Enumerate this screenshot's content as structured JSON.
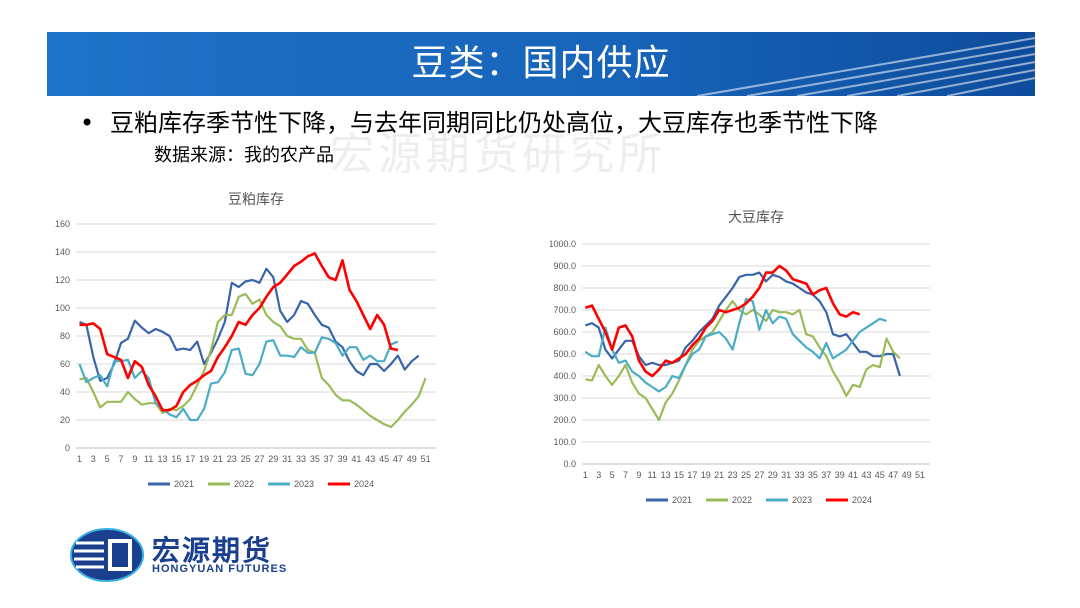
{
  "header": {
    "title": "豆类：国内供应"
  },
  "bullet": {
    "marker": "•",
    "text": "豆粕库存季节性下降，与去年同期同比仍处高位，大豆库存也季节性下降",
    "source": "数据来源：我的农产品"
  },
  "watermark": "宏源期货研究所",
  "logo": {
    "cn": "宏源期货",
    "en": "HONGYUAN FUTURES"
  },
  "colors": {
    "banner": "#1565c0",
    "s2021": "#3a65a8",
    "s2022": "#9bbb59",
    "s2023": "#4bacc6",
    "s2024": "#ff0000"
  },
  "chart_data": [
    {
      "type": "line",
      "title": "豆粕库存",
      "ylim": [
        0,
        160
      ],
      "yticks": [
        "0",
        "20",
        "40",
        "60",
        "80",
        "100",
        "120",
        "140",
        "160"
      ],
      "xticks": [
        "1",
        "3",
        "5",
        "7",
        "9",
        "11",
        "13",
        "15",
        "17",
        "19",
        "21",
        "23",
        "25",
        "27",
        "29",
        "31",
        "33",
        "35",
        "37",
        "39",
        "41",
        "43",
        "45",
        "47",
        "49",
        "51"
      ],
      "series": [
        {
          "name": "2021",
          "values": [
            90,
            88,
            65,
            48,
            50,
            60,
            75,
            78,
            91,
            86,
            82,
            85,
            83,
            80,
            70,
            71,
            70,
            76,
            60,
            68,
            78,
            90,
            118,
            115,
            119,
            120,
            118,
            128,
            122,
            98,
            90,
            95,
            105,
            103,
            95,
            88,
            86,
            76,
            72,
            62,
            55,
            52,
            60,
            60,
            55,
            60,
            66,
            56,
            62,
            66
          ]
        },
        {
          "name": "2022",
          "values": [
            49,
            50,
            40,
            29,
            33,
            33,
            33,
            40,
            35,
            31,
            32,
            32,
            25,
            28,
            27,
            30,
            35,
            45,
            55,
            70,
            90,
            95,
            95,
            108,
            110,
            103,
            106,
            95,
            90,
            87,
            80,
            78,
            78,
            70,
            68,
            50,
            45,
            38,
            34,
            34,
            31,
            27,
            23,
            20,
            17,
            15,
            20,
            26,
            31,
            37,
            50
          ]
        },
        {
          "name": "2023",
          "values": [
            60,
            47,
            50,
            52,
            44,
            62,
            62,
            63,
            50,
            55,
            50,
            32,
            28,
            24,
            22,
            28,
            20,
            20,
            28,
            46,
            47,
            54,
            70,
            71,
            53,
            52,
            60,
            76,
            77,
            66,
            66,
            65,
            72,
            68,
            68,
            79,
            78,
            75,
            66,
            72,
            72,
            63,
            66,
            62,
            62,
            74,
            76
          ]
        },
        {
          "name": "2024",
          "values": [
            88,
            88,
            89,
            85,
            67,
            65,
            63,
            50,
            62,
            58,
            45,
            37,
            27,
            27,
            30,
            40,
            45,
            48,
            52,
            55,
            65,
            72,
            80,
            90,
            88,
            95,
            100,
            108,
            115,
            118,
            124,
            130,
            133,
            137,
            139,
            130,
            122,
            120,
            134,
            113,
            105,
            95,
            85,
            95,
            88,
            71,
            70
          ]
        }
      ]
    },
    {
      "type": "line",
      "title": "大豆库存",
      "ylim": [
        0,
        1000
      ],
      "yticks": [
        "0.0",
        "100.0",
        "200.0",
        "300.0",
        "400.0",
        "500.0",
        "600.0",
        "700.0",
        "800.0",
        "900.0",
        "1000.0"
      ],
      "xticks": [
        "1",
        "3",
        "5",
        "7",
        "9",
        "11",
        "13",
        "15",
        "17",
        "19",
        "21",
        "23",
        "25",
        "27",
        "29",
        "31",
        "33",
        "35",
        "37",
        "39",
        "41",
        "43",
        "45",
        "47",
        "49",
        "51"
      ],
      "series": [
        {
          "name": "2021",
          "values": [
            630,
            640,
            620,
            520,
            480,
            520,
            560,
            560,
            490,
            450,
            460,
            450,
            450,
            460,
            470,
            530,
            560,
            600,
            630,
            660,
            720,
            760,
            800,
            850,
            860,
            860,
            870,
            830,
            860,
            850,
            830,
            820,
            800,
            780,
            770,
            740,
            690,
            590,
            580,
            590,
            550,
            510,
            510,
            490,
            490,
            500,
            500,
            400
          ]
        },
        {
          "name": "2022",
          "values": [
            385,
            380,
            450,
            400,
            360,
            400,
            450,
            370,
            320,
            300,
            250,
            200,
            280,
            320,
            380,
            450,
            520,
            560,
            580,
            600,
            650,
            700,
            740,
            700,
            680,
            700,
            680,
            650,
            700,
            690,
            690,
            680,
            700,
            590,
            580,
            530,
            490,
            420,
            370,
            310,
            360,
            350,
            430,
            450,
            440,
            570,
            510,
            480
          ]
        },
        {
          "name": "2023",
          "values": [
            510,
            490,
            490,
            620,
            520,
            460,
            470,
            420,
            400,
            370,
            350,
            330,
            350,
            400,
            390,
            450,
            500,
            520,
            580,
            590,
            600,
            570,
            520,
            640,
            750,
            740,
            610,
            700,
            640,
            670,
            660,
            590,
            560,
            530,
            510,
            480,
            550,
            480,
            500,
            520,
            560,
            600,
            620,
            640,
            660,
            650
          ]
        },
        {
          "name": "2024",
          "values": [
            710,
            720,
            660,
            600,
            520,
            620,
            630,
            580,
            470,
            420,
            400,
            430,
            470,
            460,
            480,
            500,
            540,
            570,
            620,
            650,
            700,
            690,
            700,
            710,
            730,
            760,
            800,
            870,
            870,
            900,
            880,
            840,
            830,
            820,
            770,
            790,
            800,
            730,
            680,
            670,
            690,
            680
          ]
        }
      ]
    }
  ]
}
